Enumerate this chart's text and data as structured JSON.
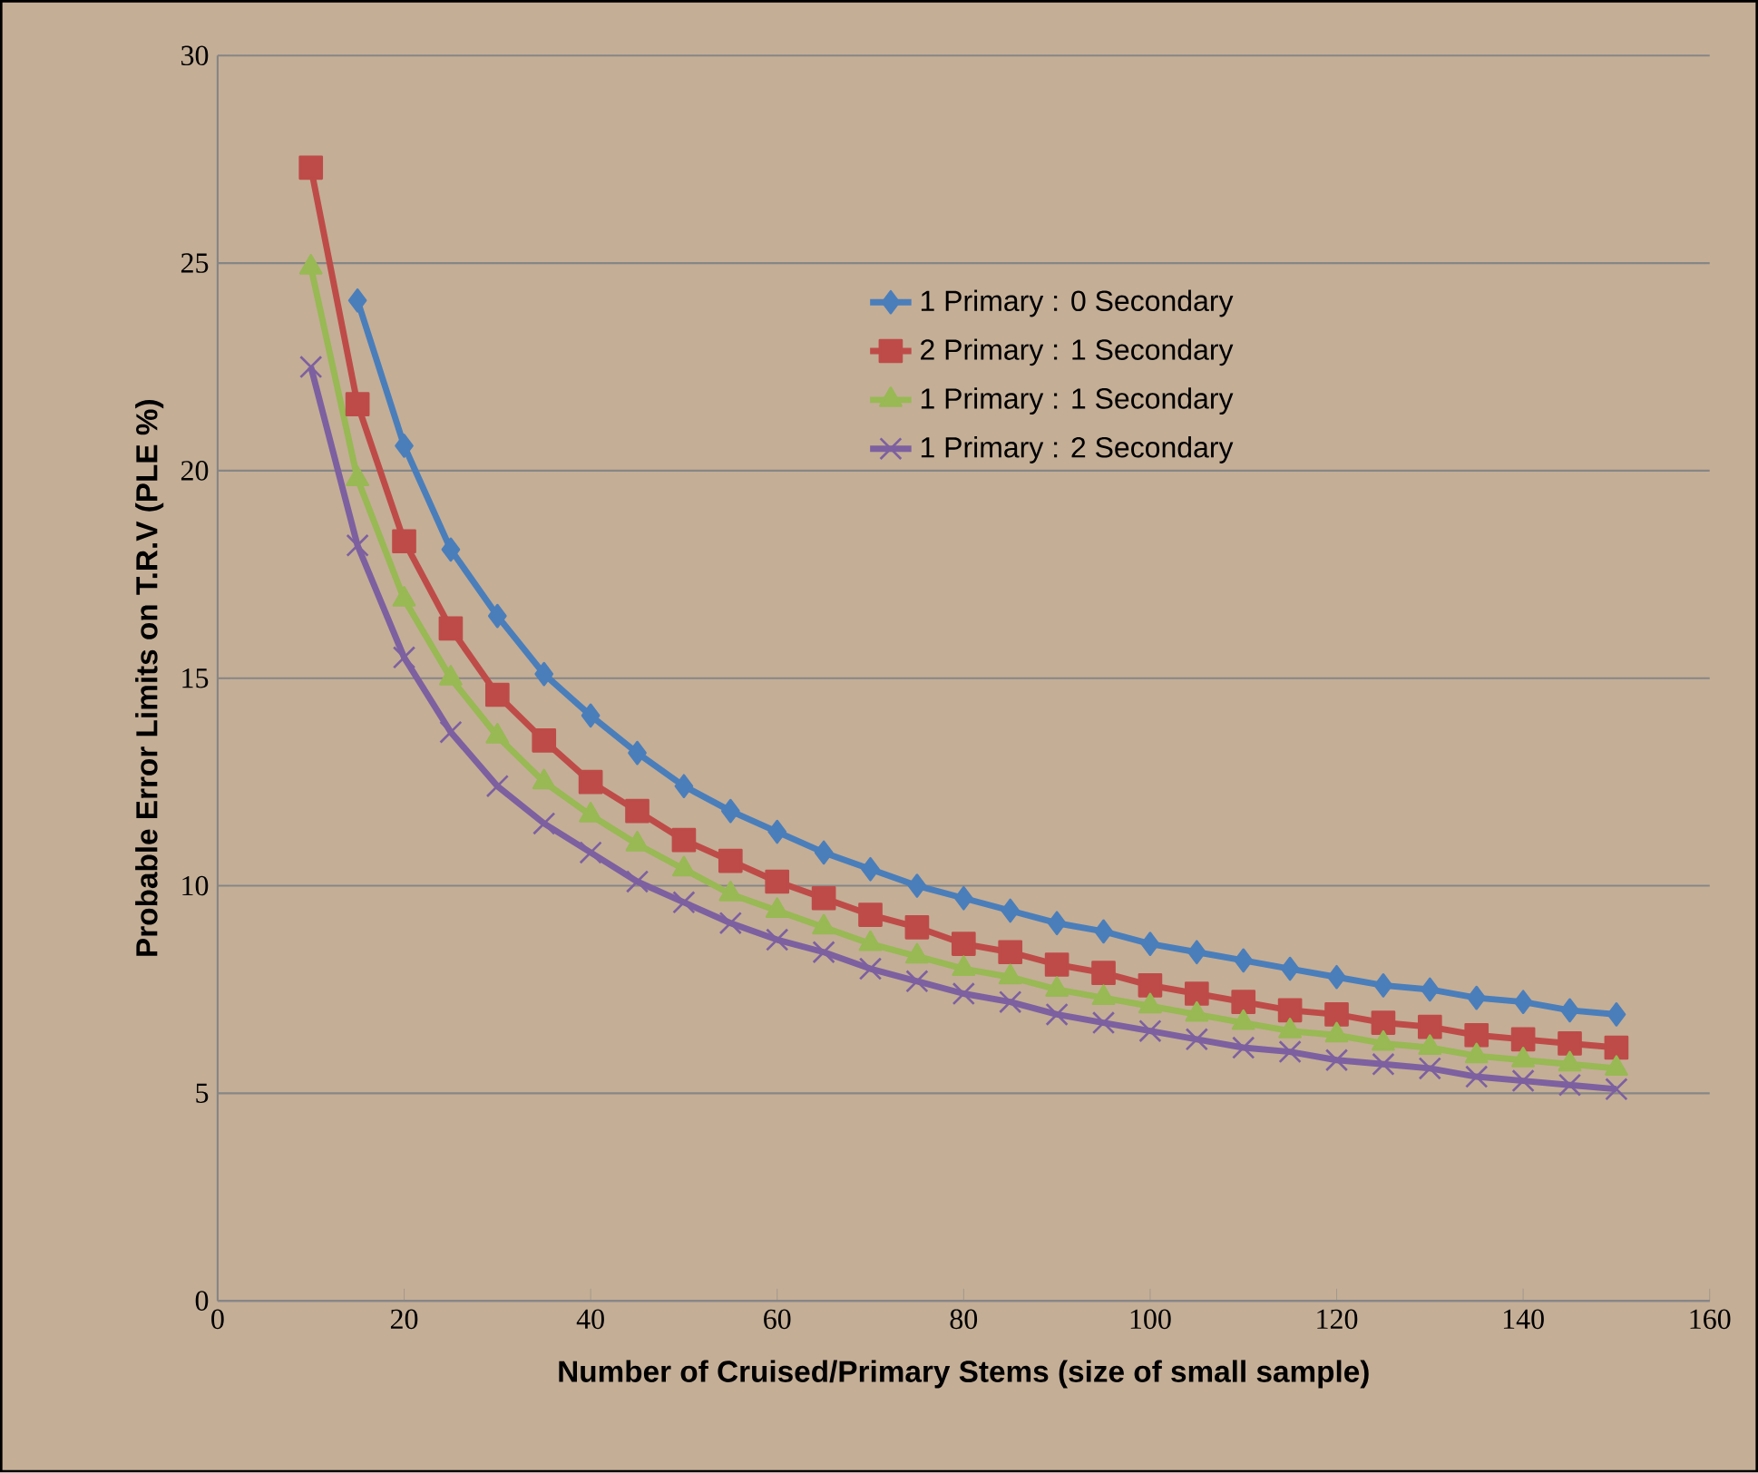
{
  "chart_data": {
    "type": "line",
    "xlabel": "Number of Cruised/Primary Stems (size of small sample)",
    "ylabel": "Probable Error Limits on T.R.V  (PLE %)",
    "xlim": [
      0,
      160
    ],
    "xticks": [
      0,
      20,
      40,
      60,
      80,
      100,
      120,
      140,
      160
    ],
    "ylim": [
      0,
      30
    ],
    "yticks": [
      0,
      5,
      10,
      15,
      20,
      25,
      30
    ],
    "grid": "y",
    "legend": "top right",
    "line_style": "solid",
    "series": [
      {
        "name": "1 Primary : 0 Secondary",
        "color": "#4a7ebb",
        "marker": "diamond",
        "x": [
          15,
          20,
          25,
          30,
          35,
          40,
          45,
          50,
          55,
          60,
          65,
          70,
          75,
          80,
          85,
          90,
          95,
          100,
          105,
          110,
          115,
          120,
          125,
          130,
          135,
          140,
          145,
          150
        ],
        "values": [
          24.1,
          20.6,
          18.1,
          16.5,
          15.1,
          14.1,
          13.2,
          12.4,
          11.8,
          11.3,
          10.8,
          10.4,
          10.0,
          9.7,
          9.4,
          9.1,
          8.9,
          8.6,
          8.4,
          8.2,
          8.0,
          7.8,
          7.6,
          7.5,
          7.3,
          7.2,
          7.0,
          6.9
        ]
      },
      {
        "name": "2 Primary : 1 Secondary",
        "color": "#be4b48",
        "marker": "square",
        "x": [
          10,
          15,
          20,
          25,
          30,
          35,
          40,
          45,
          50,
          55,
          60,
          65,
          70,
          75,
          80,
          85,
          90,
          95,
          100,
          105,
          110,
          115,
          120,
          125,
          130,
          135,
          140,
          145,
          150
        ],
        "values": [
          27.3,
          21.6,
          18.3,
          16.2,
          14.6,
          13.5,
          12.5,
          11.8,
          11.1,
          10.6,
          10.1,
          9.7,
          9.3,
          9.0,
          8.6,
          8.4,
          8.1,
          7.9,
          7.6,
          7.4,
          7.2,
          7.0,
          6.9,
          6.7,
          6.6,
          6.4,
          6.3,
          6.2,
          6.1
        ]
      },
      {
        "name": "1 Primary : 1 Secondary",
        "color": "#98b954",
        "marker": "triangle",
        "x": [
          10,
          15,
          20,
          25,
          30,
          35,
          40,
          45,
          50,
          55,
          60,
          65,
          70,
          75,
          80,
          85,
          90,
          95,
          100,
          105,
          110,
          115,
          120,
          125,
          130,
          135,
          140,
          145,
          150
        ],
        "values": [
          24.9,
          19.8,
          16.9,
          15.0,
          13.6,
          12.5,
          11.7,
          11.0,
          10.4,
          9.8,
          9.4,
          9.0,
          8.6,
          8.3,
          8.0,
          7.8,
          7.5,
          7.3,
          7.1,
          6.9,
          6.7,
          6.5,
          6.4,
          6.2,
          6.1,
          5.9,
          5.8,
          5.7,
          5.6
        ]
      },
      {
        "name": "1 Primary : 2 Secondary",
        "color": "#7d60a0",
        "marker": "cross",
        "x": [
          10,
          15,
          20,
          25,
          30,
          35,
          40,
          45,
          50,
          55,
          60,
          65,
          70,
          75,
          80,
          85,
          90,
          95,
          100,
          105,
          110,
          115,
          120,
          125,
          130,
          135,
          140,
          145,
          150
        ],
        "values": [
          22.5,
          18.2,
          15.5,
          13.7,
          12.4,
          11.5,
          10.8,
          10.1,
          9.6,
          9.1,
          8.7,
          8.4,
          8.0,
          7.7,
          7.4,
          7.2,
          6.9,
          6.7,
          6.5,
          6.3,
          6.1,
          6.0,
          5.8,
          5.7,
          5.6,
          5.4,
          5.3,
          5.2,
          5.1
        ]
      }
    ]
  }
}
